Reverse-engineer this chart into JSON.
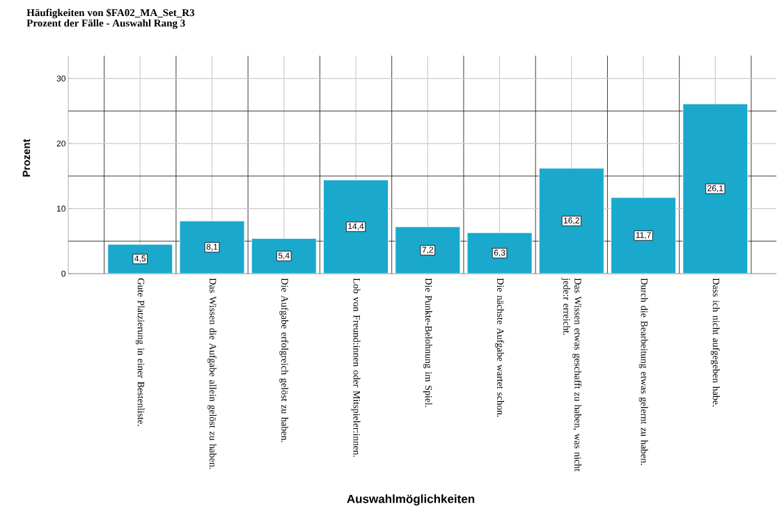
{
  "chart_data": {
    "type": "bar",
    "title": "Häufigkeiten von $FA02_MA_Set_R3",
    "subtitle": "Prozent der Fälle - Auswahl Rang 3",
    "xlabel": "Auswahlmöglichkeiten",
    "ylabel": "Prozent",
    "categories": [
      "Gute Platzierung in einer Bestenliste.",
      "Das Wissen die Aufgabe allein gelöst zu haben.",
      "Die Aufgabe erfolgreich gelöst zu haben.",
      "Lob von Freund:innen oder Mitspieler:innen.",
      "Die Punkte-Belohnung im Spiel.",
      "Die nächste Aufgabe wartet schon.",
      "Das Wissen etwas geschafft zu haben, was nicht jede:r erreicht.",
      "Durch die Bearbeitung etwas gelernt zu haben.",
      "Dass ich nicht aufgegeben habe."
    ],
    "values": [
      4.5,
      8.1,
      5.4,
      14.4,
      7.2,
      6.3,
      16.2,
      11.7,
      26.1
    ],
    "value_labels": [
      "4,5",
      "8,1",
      "5,4",
      "14,4",
      "7,2",
      "6,3",
      "16,2",
      "11,7",
      "26,1"
    ],
    "color": "#1aa9cc",
    "ylim": [
      0,
      33.5
    ],
    "yticks": [
      0,
      10,
      20,
      30
    ],
    "grid": true
  }
}
